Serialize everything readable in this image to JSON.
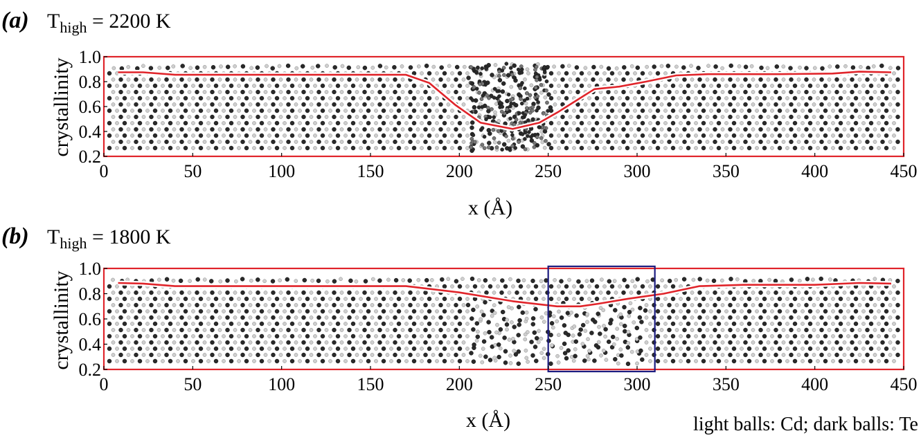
{
  "figure_note": "light balls: Cd; dark balls: Te",
  "atom_colors": {
    "Cd": "#d4d4d4",
    "Te": "#2a2a2a"
  },
  "colors": {
    "frame": "#e0242a",
    "curve": "#e0242a",
    "highlight_box": "#1c1c80",
    "atoms_light": "#cfcfcf",
    "atoms_dark": "#2a2a2a"
  },
  "chart_data": [
    {
      "panel": "(a)",
      "type": "line",
      "title_T": "T",
      "title_sub": "high",
      "title_rest": " = 2200 K",
      "xlabel": "x (Å)",
      "ylabel": "crystallinity",
      "xlim": [
        0,
        450
      ],
      "ylim": [
        0.2,
        1.0
      ],
      "xticks": [
        "0",
        "50",
        "100",
        "150",
        "200",
        "250",
        "300",
        "350",
        "400",
        "450"
      ],
      "yticks": [
        "0.2",
        "0.4",
        "0.6",
        "0.8",
        "1.0"
      ],
      "series": [
        {
          "x": [
            8,
            22,
            40,
            170,
            183,
            198,
            212,
            230,
            245,
            256,
            266,
            276,
            290,
            305,
            322,
            340,
            380,
            410,
            425,
            443
          ],
          "y": [
            0.875,
            0.875,
            0.855,
            0.855,
            0.79,
            0.61,
            0.47,
            0.42,
            0.47,
            0.56,
            0.65,
            0.74,
            0.76,
            0.8,
            0.85,
            0.86,
            0.86,
            0.865,
            0.88,
            0.875
          ]
        }
      ],
      "highlight": null,
      "disorder_region": {
        "x_center": 228,
        "x_half_width": 22,
        "depth": "full"
      }
    },
    {
      "panel": "(b)",
      "type": "line",
      "title_T": "T",
      "title_sub": "high",
      "title_rest": " = 1800 K",
      "xlabel": "x (Å)",
      "ylabel": "crystallinity",
      "xlim": [
        0,
        450
      ],
      "ylim": [
        0.2,
        1.0
      ],
      "xticks": [
        "0",
        "50",
        "100",
        "150",
        "200",
        "250",
        "300",
        "350",
        "400",
        "450"
      ],
      "yticks": [
        "0.2",
        "0.4",
        "0.6",
        "0.8",
        "1.0"
      ],
      "series": [
        {
          "x": [
            8,
            22,
            40,
            170,
            200,
            230,
            255,
            268,
            278,
            295,
            315,
            335,
            360,
            400,
            425,
            443
          ],
          "y": [
            0.885,
            0.88,
            0.86,
            0.86,
            0.81,
            0.74,
            0.7,
            0.7,
            0.72,
            0.76,
            0.8,
            0.86,
            0.87,
            0.87,
            0.885,
            0.88
          ]
        }
      ],
      "highlight": {
        "x": [
          250,
          310
        ],
        "y": [
          0.2,
          1.0
        ]
      },
      "disorder_region": {
        "x_center": 255,
        "x_half_width": 50,
        "depth": "lower"
      }
    }
  ]
}
